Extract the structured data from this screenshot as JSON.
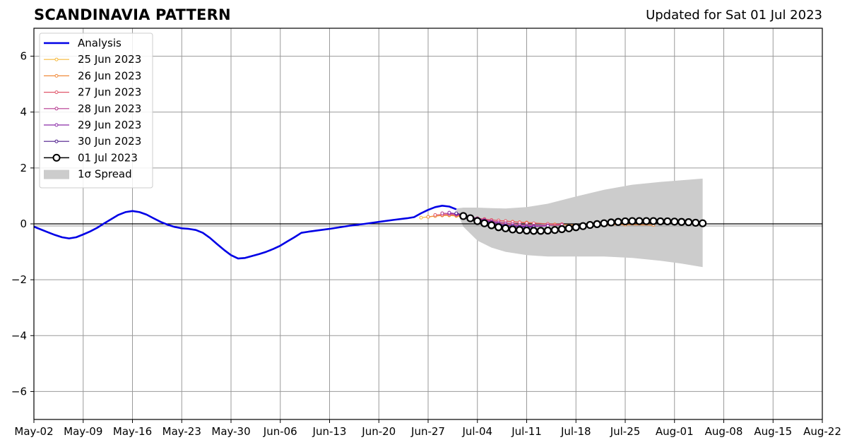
{
  "header": {
    "title": "SCANDINAVIA PATTERN",
    "updated": "Updated for Sat 01 Jul 2023"
  },
  "chart_data": {
    "type": "line",
    "title": "SCANDINAVIA PATTERN",
    "subtitle": "Updated for Sat 01 Jul 2023",
    "xlabel": "",
    "ylabel": "",
    "x_axis_type": "date",
    "xlim": [
      "2023-05-02",
      "2023-08-22"
    ],
    "ylim": [
      -7,
      7
    ],
    "x_ticks": [
      "May-02",
      "May-09",
      "May-16",
      "May-23",
      "May-30",
      "Jun-06",
      "Jun-13",
      "Jun-20",
      "Jun-27",
      "Jul-04",
      "Jul-11",
      "Jul-18",
      "Jul-25",
      "Aug-01",
      "Aug-08",
      "Aug-15",
      "Aug-22"
    ],
    "x_tick_dates": [
      "2023-05-02",
      "2023-05-09",
      "2023-05-16",
      "2023-05-23",
      "2023-05-30",
      "2023-06-06",
      "2023-06-13",
      "2023-06-20",
      "2023-06-27",
      "2023-07-04",
      "2023-07-11",
      "2023-07-18",
      "2023-07-25",
      "2023-08-01",
      "2023-08-08",
      "2023-08-15",
      "2023-08-22"
    ],
    "y_ticks": [
      -6,
      -4,
      -2,
      0,
      2,
      4,
      6
    ],
    "y_tick_labels": [
      "−6",
      "−4",
      "−2",
      "0",
      "2",
      "4",
      "6"
    ],
    "grid": true,
    "legend_position": "top-left",
    "legend": [
      "Analysis",
      "25 Jun 2023",
      "26 Jun 2023",
      "27 Jun 2023",
      "28 Jun 2023",
      "29 Jun 2023",
      "30 Jun 2023",
      "01 Jul 2023",
      "1σ Spread"
    ],
    "zero_line": true,
    "analysis": {
      "name": "Analysis",
      "color": "#0000e6",
      "x": [
        "2023-05-02",
        "2023-05-04",
        "2023-05-05",
        "2023-05-06",
        "2023-05-07",
        "2023-05-08",
        "2023-05-09",
        "2023-05-10",
        "2023-05-11",
        "2023-05-12",
        "2023-05-13",
        "2023-05-14",
        "2023-05-15",
        "2023-05-16",
        "2023-05-17",
        "2023-05-18",
        "2023-05-19",
        "2023-05-20",
        "2023-05-21",
        "2023-05-22",
        "2023-05-23",
        "2023-05-24",
        "2023-05-25",
        "2023-05-26",
        "2023-05-27",
        "2023-05-28",
        "2023-05-29",
        "2023-05-30",
        "2023-05-31",
        "2023-06-01",
        "2023-06-02",
        "2023-06-03",
        "2023-06-04",
        "2023-06-05",
        "2023-06-06",
        "2023-06-07",
        "2023-06-08",
        "2023-06-09",
        "2023-06-10",
        "2023-06-13",
        "2023-06-16",
        "2023-06-18",
        "2023-06-20",
        "2023-06-22",
        "2023-06-24",
        "2023-06-25",
        "2023-06-26",
        "2023-06-27",
        "2023-06-28",
        "2023-06-29",
        "2023-06-30",
        "2023-07-01"
      ],
      "y": [
        -0.1,
        -0.3,
        -0.4,
        -0.48,
        -0.52,
        -0.48,
        -0.38,
        -0.27,
        -0.14,
        0.02,
        0.17,
        0.32,
        0.42,
        0.46,
        0.42,
        0.33,
        0.2,
        0.07,
        -0.03,
        -0.11,
        -0.16,
        -0.18,
        -0.22,
        -0.32,
        -0.5,
        -0.72,
        -0.93,
        -1.12,
        -1.24,
        -1.22,
        -1.15,
        -1.08,
        -1.0,
        -0.9,
        -0.78,
        -0.63,
        -0.48,
        -0.32,
        -0.28,
        -0.18,
        -0.06,
        0.0,
        0.07,
        0.14,
        0.2,
        0.24,
        0.38,
        0.5,
        0.6,
        0.65,
        0.62,
        0.52
      ]
    },
    "series": [
      {
        "name": "25 Jun 2023",
        "color": "#f5b83a",
        "x": [
          "2023-06-26",
          "2023-06-27",
          "2023-06-28",
          "2023-06-29",
          "2023-06-30",
          "2023-07-01",
          "2023-07-02",
          "2023-07-03",
          "2023-07-04",
          "2023-07-05",
          "2023-07-06",
          "2023-07-07",
          "2023-07-08",
          "2023-07-09",
          "2023-07-10"
        ],
        "y": [
          0.22,
          0.25,
          0.28,
          0.3,
          0.3,
          0.28,
          0.24,
          0.2,
          0.15,
          0.1,
          0.06,
          0.02,
          0.0,
          -0.02,
          -0.03
        ]
      },
      {
        "name": "26 Jun 2023",
        "color": "#f08a3a",
        "x": [
          "2023-06-27",
          "2023-06-28",
          "2023-06-29",
          "2023-06-30",
          "2023-07-01",
          "2023-07-02",
          "2023-07-03",
          "2023-07-04",
          "2023-07-05",
          "2023-07-06",
          "2023-07-07",
          "2023-07-08",
          "2023-07-09",
          "2023-07-10",
          "2023-07-11",
          "2023-07-15",
          "2023-07-20",
          "2023-07-25",
          "2023-07-29"
        ],
        "y": [
          0.25,
          0.28,
          0.3,
          0.32,
          0.3,
          0.27,
          0.24,
          0.2,
          0.17,
          0.14,
          0.12,
          0.1,
          0.08,
          0.06,
          0.05,
          -0.02,
          -0.05,
          -0.03,
          -0.04
        ]
      },
      {
        "name": "27 Jun 2023",
        "color": "#e0566a",
        "x": [
          "2023-06-28",
          "2023-06-29",
          "2023-06-30",
          "2023-07-01",
          "2023-07-02",
          "2023-07-03",
          "2023-07-04",
          "2023-07-05",
          "2023-07-06",
          "2023-07-07",
          "2023-07-08",
          "2023-07-09",
          "2023-07-10",
          "2023-07-11",
          "2023-07-12",
          "2023-07-14",
          "2023-07-16"
        ],
        "y": [
          0.32,
          0.33,
          0.33,
          0.31,
          0.28,
          0.24,
          0.2,
          0.17,
          0.14,
          0.12,
          0.1,
          0.07,
          0.05,
          0.03,
          0.02,
          0.0,
          -0.01
        ]
      },
      {
        "name": "28 Jun 2023",
        "color": "#b5398f",
        "x": [
          "2023-06-29",
          "2023-06-30",
          "2023-07-01",
          "2023-07-02",
          "2023-07-03",
          "2023-07-04",
          "2023-07-05",
          "2023-07-06",
          "2023-07-07",
          "2023-07-08",
          "2023-07-09",
          "2023-07-10",
          "2023-07-11",
          "2023-07-12",
          "2023-07-14",
          "2023-07-16"
        ],
        "y": [
          0.38,
          0.37,
          0.34,
          0.3,
          0.25,
          0.2,
          0.15,
          0.1,
          0.06,
          0.03,
          0.0,
          -0.03,
          -0.05,
          -0.06,
          -0.05,
          -0.04
        ]
      },
      {
        "name": "29 Jun 2023",
        "color": "#8a2aa8",
        "x": [
          "2023-06-30",
          "2023-07-01",
          "2023-07-02",
          "2023-07-03",
          "2023-07-04",
          "2023-07-05",
          "2023-07-06",
          "2023-07-07",
          "2023-07-08",
          "2023-07-09",
          "2023-07-10",
          "2023-07-11",
          "2023-07-12",
          "2023-07-14"
        ],
        "y": [
          0.4,
          0.36,
          0.3,
          0.24,
          0.18,
          0.12,
          0.07,
          0.02,
          -0.02,
          -0.05,
          -0.08,
          -0.09,
          -0.09,
          -0.07
        ]
      },
      {
        "name": "30 Jun 2023",
        "color": "#4b1a8a",
        "x": [
          "2023-07-01",
          "2023-07-02",
          "2023-07-03",
          "2023-07-04",
          "2023-07-05",
          "2023-07-06",
          "2023-07-07",
          "2023-07-08",
          "2023-07-09",
          "2023-07-10",
          "2023-07-11",
          "2023-07-12"
        ],
        "y": [
          0.38,
          0.32,
          0.25,
          0.18,
          0.1,
          0.04,
          -0.02,
          -0.06,
          -0.09,
          -0.11,
          -0.12,
          -0.12
        ]
      },
      {
        "name": "01 Jul 2023",
        "color": "#000000",
        "x": [
          "2023-07-02",
          "2023-07-03",
          "2023-07-04",
          "2023-07-05",
          "2023-07-06",
          "2023-07-07",
          "2023-07-08",
          "2023-07-09",
          "2023-07-10",
          "2023-07-11",
          "2023-07-12",
          "2023-07-13",
          "2023-07-14",
          "2023-07-15",
          "2023-07-16",
          "2023-07-17",
          "2023-07-18",
          "2023-07-19",
          "2023-07-20",
          "2023-07-21",
          "2023-07-22",
          "2023-07-23",
          "2023-07-24",
          "2023-07-25",
          "2023-07-26",
          "2023-07-27",
          "2023-07-28",
          "2023-07-29",
          "2023-07-30",
          "2023-07-31",
          "2023-08-01",
          "2023-08-02",
          "2023-08-03",
          "2023-08-04",
          "2023-08-05"
        ],
        "y": [
          0.28,
          0.2,
          0.1,
          0.02,
          -0.05,
          -0.12,
          -0.16,
          -0.2,
          -0.22,
          -0.24,
          -0.25,
          -0.25,
          -0.24,
          -0.22,
          -0.19,
          -0.16,
          -0.12,
          -0.08,
          -0.04,
          -0.01,
          0.02,
          0.05,
          0.07,
          0.09,
          0.1,
          0.1,
          0.1,
          0.1,
          0.09,
          0.09,
          0.08,
          0.07,
          0.06,
          0.04,
          0.02
        ]
      }
    ],
    "spread": {
      "name": "1σ Spread",
      "color": "#cccccc",
      "x": [
        "2023-07-01",
        "2023-07-02",
        "2023-07-04",
        "2023-07-06",
        "2023-07-08",
        "2023-07-11",
        "2023-07-14",
        "2023-07-18",
        "2023-07-22",
        "2023-07-26",
        "2023-07-30",
        "2023-08-02",
        "2023-08-05"
      ],
      "upper": [
        0.55,
        0.58,
        0.58,
        0.56,
        0.55,
        0.6,
        0.72,
        0.98,
        1.22,
        1.4,
        1.5,
        1.56,
        1.62
      ],
      "lower": [
        0.5,
        -0.1,
        -0.6,
        -0.85,
        -1.0,
        -1.12,
        -1.17,
        -1.17,
        -1.17,
        -1.22,
        -1.32,
        -1.42,
        -1.55
      ]
    }
  }
}
